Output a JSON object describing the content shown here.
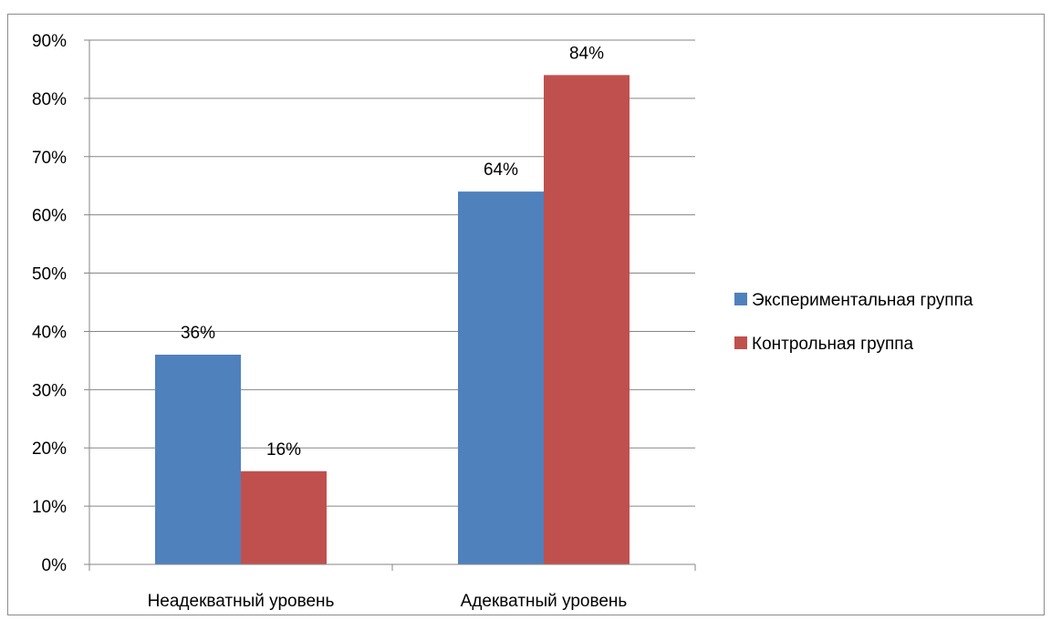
{
  "chart_data": {
    "type": "bar",
    "title": "",
    "xlabel": "",
    "ylabel": "",
    "categories": [
      "Неадекватный уровень",
      "Адекватный уровень"
    ],
    "series": [
      {
        "name": "Экспериментальная группа",
        "values": [
          36,
          64
        ],
        "labels": [
          "36%",
          "64%"
        ],
        "color": "#4f81bd"
      },
      {
        "name": "Контрольная группа",
        "values": [
          16,
          84
        ],
        "labels": [
          "16%",
          "84%"
        ],
        "color": "#c0504d"
      }
    ],
    "ylim": [
      0,
      90
    ],
    "y_ticks": [
      "0%",
      "10%",
      "20%",
      "30%",
      "40%",
      "50%",
      "60%",
      "70%",
      "80%",
      "90%"
    ],
    "grid": true,
    "legend_position": "right",
    "gridline_color": "#868686"
  }
}
